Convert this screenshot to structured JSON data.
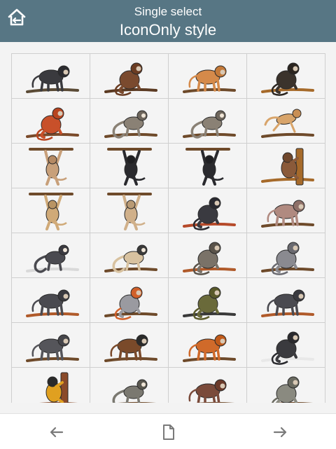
{
  "header": {
    "subtitle": "Single select",
    "title": "IconOnly style",
    "home_icon": "home-back-icon",
    "background": "#577684"
  },
  "grid": {
    "columns": 4,
    "items": [
      {
        "name": "monkey-icon-1",
        "body": "#3a3a3e",
        "head": "#2c2c30",
        "accent": "#5a4a35",
        "pose": "stand"
      },
      {
        "name": "monkey-icon-2",
        "body": "#7a4a2e",
        "head": "#6a3c22",
        "accent": "#5b3a22",
        "pose": "sit"
      },
      {
        "name": "monkey-icon-3",
        "body": "#d58a4a",
        "head": "#c47a3a",
        "accent": "#6e4a2a",
        "pose": "stand"
      },
      {
        "name": "monkey-icon-4",
        "body": "#3b332c",
        "head": "#2b2520",
        "accent": "#a66a2a",
        "pose": "sit"
      },
      {
        "name": "monkey-icon-5",
        "body": "#c8502a",
        "head": "#b8441f",
        "accent": "#7a4a2a",
        "pose": "sit"
      },
      {
        "name": "monkey-icon-6",
        "body": "#8a8175",
        "head": "#6e665c",
        "accent": "#6e4a2a",
        "pose": "tail"
      },
      {
        "name": "monkey-icon-7",
        "body": "#8a8175",
        "head": "#6e665c",
        "accent": "#6e4a2a",
        "pose": "tail"
      },
      {
        "name": "monkey-icon-8",
        "body": "#d8a46a",
        "head": "#c98f55",
        "accent": "#6e4a2a",
        "pose": "leap"
      },
      {
        "name": "monkey-icon-9",
        "body": "#c8a07a",
        "head": "#b58a64",
        "accent": "#6e4a2a",
        "pose": "hang"
      },
      {
        "name": "monkey-icon-10",
        "body": "#2a2a2e",
        "head": "#1f1f22",
        "accent": "#6e4a2a",
        "pose": "hang"
      },
      {
        "name": "monkey-icon-11",
        "body": "#2a2a2e",
        "head": "#1f1f22",
        "accent": "#6e4a2a",
        "pose": "hang"
      },
      {
        "name": "monkey-icon-12",
        "body": "#8a5a3a",
        "head": "#6f472c",
        "accent": "#a66a2a",
        "pose": "climb"
      },
      {
        "name": "monkey-icon-13",
        "body": "#d0aa78",
        "head": "#b99463",
        "accent": "#6e4a2a",
        "pose": "hang"
      },
      {
        "name": "monkey-icon-14",
        "body": "#d0b08a",
        "head": "#b99a74",
        "accent": "#6e4a2a",
        "pose": "hang"
      },
      {
        "name": "monkey-icon-15",
        "body": "#3a3a40",
        "head": "#2a2a30",
        "accent": "#b64a2a",
        "pose": "sit"
      },
      {
        "name": "monkey-icon-16",
        "body": "#b08a80",
        "head": "#8e7068",
        "accent": "#6e4a2a",
        "pose": "stand"
      },
      {
        "name": "monkey-icon-17",
        "body": "#4a4a50",
        "head": "#3a3a40",
        "accent": "#d9d9d9",
        "pose": "tail"
      },
      {
        "name": "monkey-icon-18",
        "body": "#d8c2a0",
        "head": "#3a3a3a",
        "accent": "#6e4a2a",
        "pose": "tail"
      },
      {
        "name": "monkey-icon-19",
        "body": "#7a7268",
        "head": "#5a534a",
        "accent": "#b05a2a",
        "pose": "sit"
      },
      {
        "name": "monkey-icon-20",
        "body": "#8a8a90",
        "head": "#6a6a70",
        "accent": "#6e4a2a",
        "pose": "sit"
      },
      {
        "name": "monkey-icon-21",
        "body": "#4a4a50",
        "head": "#3a3a40",
        "accent": "#b05a2a",
        "pose": "stand"
      },
      {
        "name": "monkey-icon-22",
        "body": "#9a9aa0",
        "head": "#d0602a",
        "accent": "#6e4a2a",
        "pose": "sit"
      },
      {
        "name": "monkey-icon-23",
        "body": "#6a6a3a",
        "head": "#5a5a2a",
        "accent": "#3a3a3a",
        "pose": "sit"
      },
      {
        "name": "monkey-icon-24",
        "body": "#4a4a50",
        "head": "#3a3a40",
        "accent": "#b05a2a",
        "pose": "stand"
      },
      {
        "name": "monkey-icon-25",
        "body": "#55555a",
        "head": "#45454a",
        "accent": "#6e4a2a",
        "pose": "stand"
      },
      {
        "name": "monkey-icon-26",
        "body": "#7a4a2a",
        "head": "#2a2a2a",
        "accent": "#6e4a2a",
        "pose": "stand"
      },
      {
        "name": "monkey-icon-27",
        "body": "#d06a2a",
        "head": "#c05a1a",
        "accent": "#6e4a2a",
        "pose": "stand"
      },
      {
        "name": "monkey-icon-28",
        "body": "#3a3a3e",
        "head": "#2a2a2e",
        "accent": "#e8e8e8",
        "pose": "sit"
      },
      {
        "name": "monkey-icon-29",
        "body": "#e0a020",
        "head": "#2a2a2a",
        "accent": "#8a4a2a",
        "pose": "climb"
      },
      {
        "name": "monkey-icon-30",
        "body": "#7a7870",
        "head": "#5a5850",
        "accent": "#6e4a2a",
        "pose": "tail"
      },
      {
        "name": "monkey-icon-31",
        "body": "#7a4a3a",
        "head": "#6a3a2a",
        "accent": "#6e4a2a",
        "pose": "stand"
      },
      {
        "name": "monkey-icon-32",
        "body": "#8a8a80",
        "head": "#6a6a60",
        "accent": "#6e4a2a",
        "pose": "sit"
      }
    ]
  },
  "footer": {
    "prev_icon": "arrow-left-icon",
    "doc_icon": "document-icon",
    "next_icon": "arrow-right-icon"
  }
}
